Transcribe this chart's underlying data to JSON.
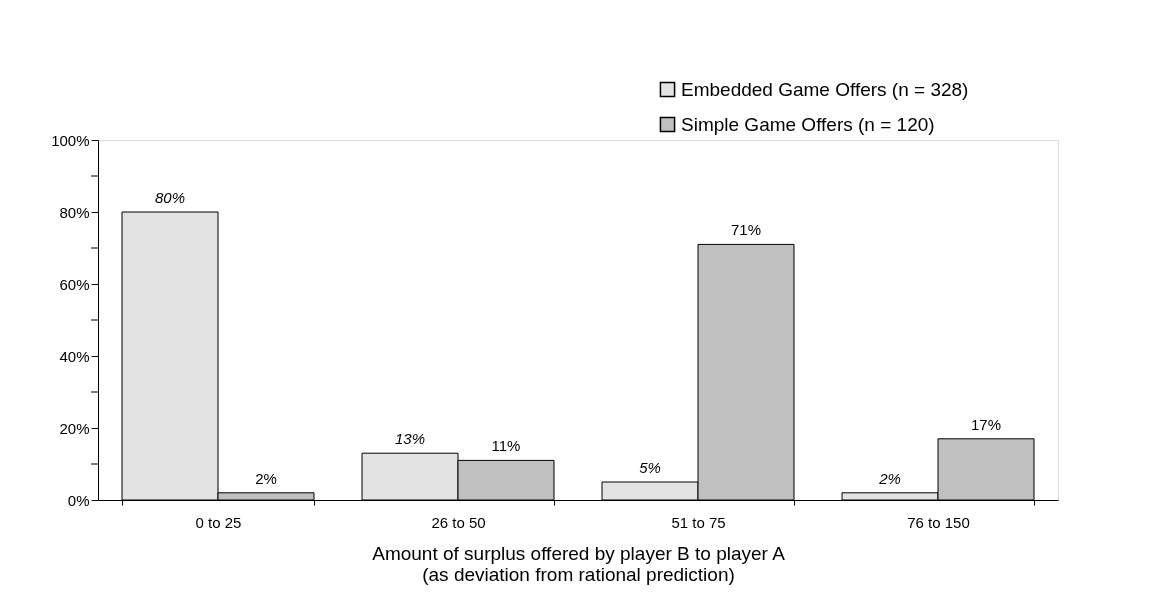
{
  "chart_data": {
    "type": "bar",
    "xlabel": "Amount of surplus offered by player B to player A\n(as deviation from rational prediction)",
    "categories": [
      "0 to 25",
      "26 to 50",
      "51 to 75",
      "76 to 150"
    ],
    "series": [
      {
        "name": "Embedded Game Offers (n = 328)",
        "color": "#e3e3e3",
        "values": [
          80,
          13,
          5,
          2
        ],
        "value_labels": [
          "80%",
          "13%",
          "5%",
          "2%"
        ]
      },
      {
        "name": "Simple Game Offers (n = 120)",
        "color": "#c0c0c0",
        "values": [
          2,
          11,
          71,
          17
        ],
        "value_labels": [
          "2%",
          "11%",
          "71%",
          "17%"
        ]
      }
    ],
    "ylim": [
      0,
      100
    ],
    "yticks": [
      {
        "value": 0,
        "label": "0%"
      },
      {
        "value": 10,
        "label": null
      },
      {
        "value": 20,
        "label": "20%"
      },
      {
        "value": 30,
        "label": null
      },
      {
        "value": 40,
        "label": "40%"
      },
      {
        "value": 50,
        "label": null
      },
      {
        "value": 60,
        "label": "60%"
      },
      {
        "value": 70,
        "label": null
      },
      {
        "value": 80,
        "label": "80%"
      },
      {
        "value": 90,
        "label": null
      },
      {
        "value": 100,
        "label": "100%"
      }
    ],
    "legend": "top right",
    "grid": false
  }
}
